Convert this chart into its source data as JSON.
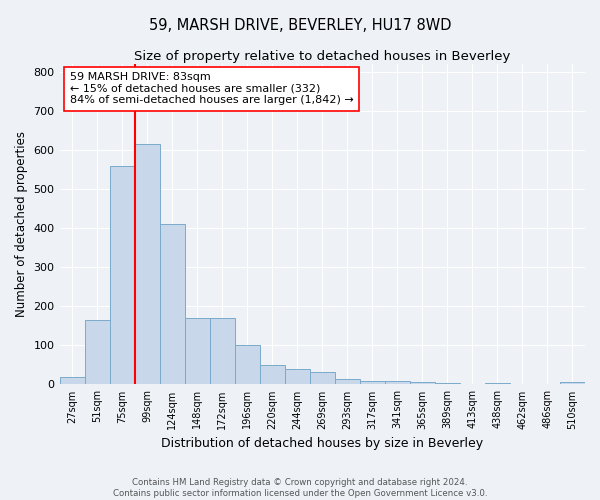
{
  "title": "59, MARSH DRIVE, BEVERLEY, HU17 8WD",
  "subtitle": "Size of property relative to detached houses in Beverley",
  "xlabel": "Distribution of detached houses by size in Beverley",
  "ylabel": "Number of detached properties",
  "bin_labels": [
    "27sqm",
    "51sqm",
    "75sqm",
    "99sqm",
    "124sqm",
    "148sqm",
    "172sqm",
    "196sqm",
    "220sqm",
    "244sqm",
    "269sqm",
    "293sqm",
    "317sqm",
    "341sqm",
    "365sqm",
    "389sqm",
    "413sqm",
    "438sqm",
    "462sqm",
    "486sqm",
    "510sqm"
  ],
  "bar_heights": [
    20,
    165,
    560,
    615,
    410,
    170,
    170,
    100,
    50,
    40,
    33,
    13,
    10,
    8,
    5,
    3,
    0,
    3,
    0,
    0,
    7
  ],
  "bar_color": "#c8d8ea",
  "bar_edge_color": "#7aaaca",
  "vline_color": "red",
  "annotation_text": "59 MARSH DRIVE: 83sqm\n← 15% of detached houses are smaller (332)\n84% of semi-detached houses are larger (1,842) →",
  "annotation_box_color": "white",
  "annotation_box_edge_color": "red",
  "ylim": [
    0,
    820
  ],
  "yticks": [
    0,
    100,
    200,
    300,
    400,
    500,
    600,
    700,
    800
  ],
  "footer1": "Contains HM Land Registry data © Crown copyright and database right 2024.",
  "footer2": "Contains public sector information licensed under the Open Government Licence v3.0.",
  "bg_color": "#eef2f7",
  "title_fontsize": 10.5,
  "subtitle_fontsize": 9.5
}
